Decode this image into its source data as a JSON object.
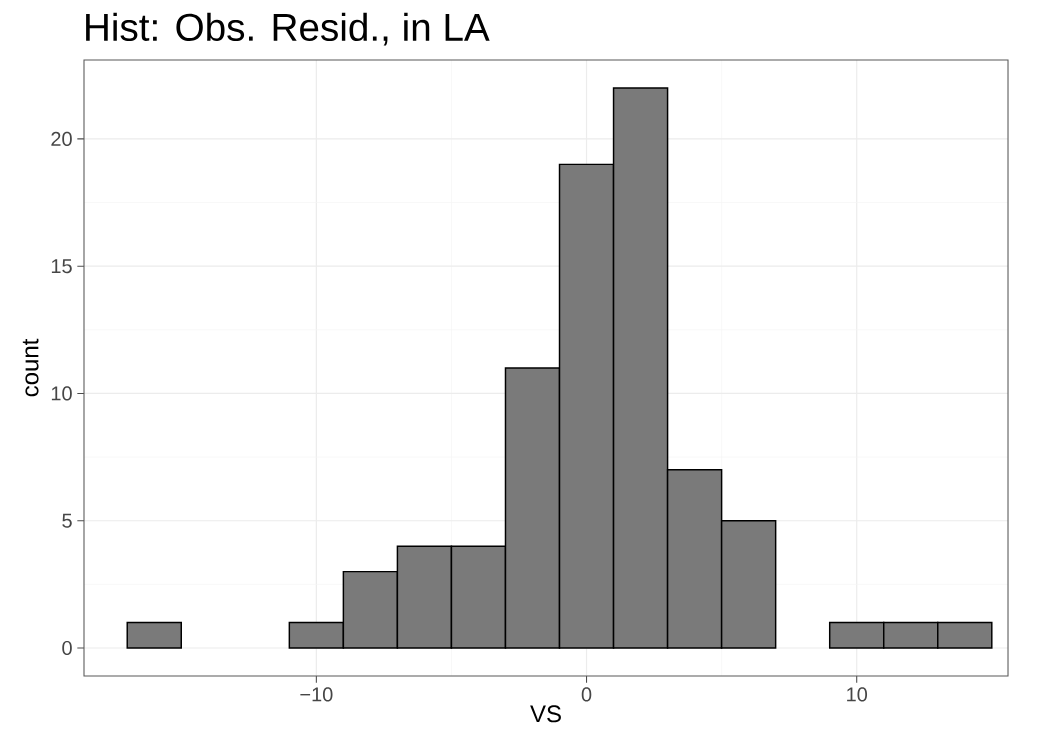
{
  "chart_data": {
    "type": "histogram",
    "title": "Hist: Obs. Resid., in LA",
    "xlabel": "VS",
    "ylabel": "count",
    "bins": [
      -17,
      -15,
      -13,
      -11,
      -9,
      -7,
      -5,
      -3,
      -1,
      1,
      3,
      5,
      7,
      9,
      11,
      13,
      15
    ],
    "values": [
      1,
      0,
      0,
      1,
      3,
      4,
      4,
      11,
      19,
      22,
      7,
      5,
      0,
      1,
      1,
      1
    ],
    "color": "#7a7a7a",
    "xlim": [
      -18.6,
      15.6
    ],
    "ylim": [
      -1.1,
      23.1
    ],
    "xticks": [
      {
        "value": -10,
        "label": "−10"
      },
      {
        "value": 0,
        "label": "0"
      },
      {
        "value": 10,
        "label": "10"
      }
    ],
    "yticks": [
      0,
      5,
      10,
      15,
      20
    ],
    "grid": true
  }
}
